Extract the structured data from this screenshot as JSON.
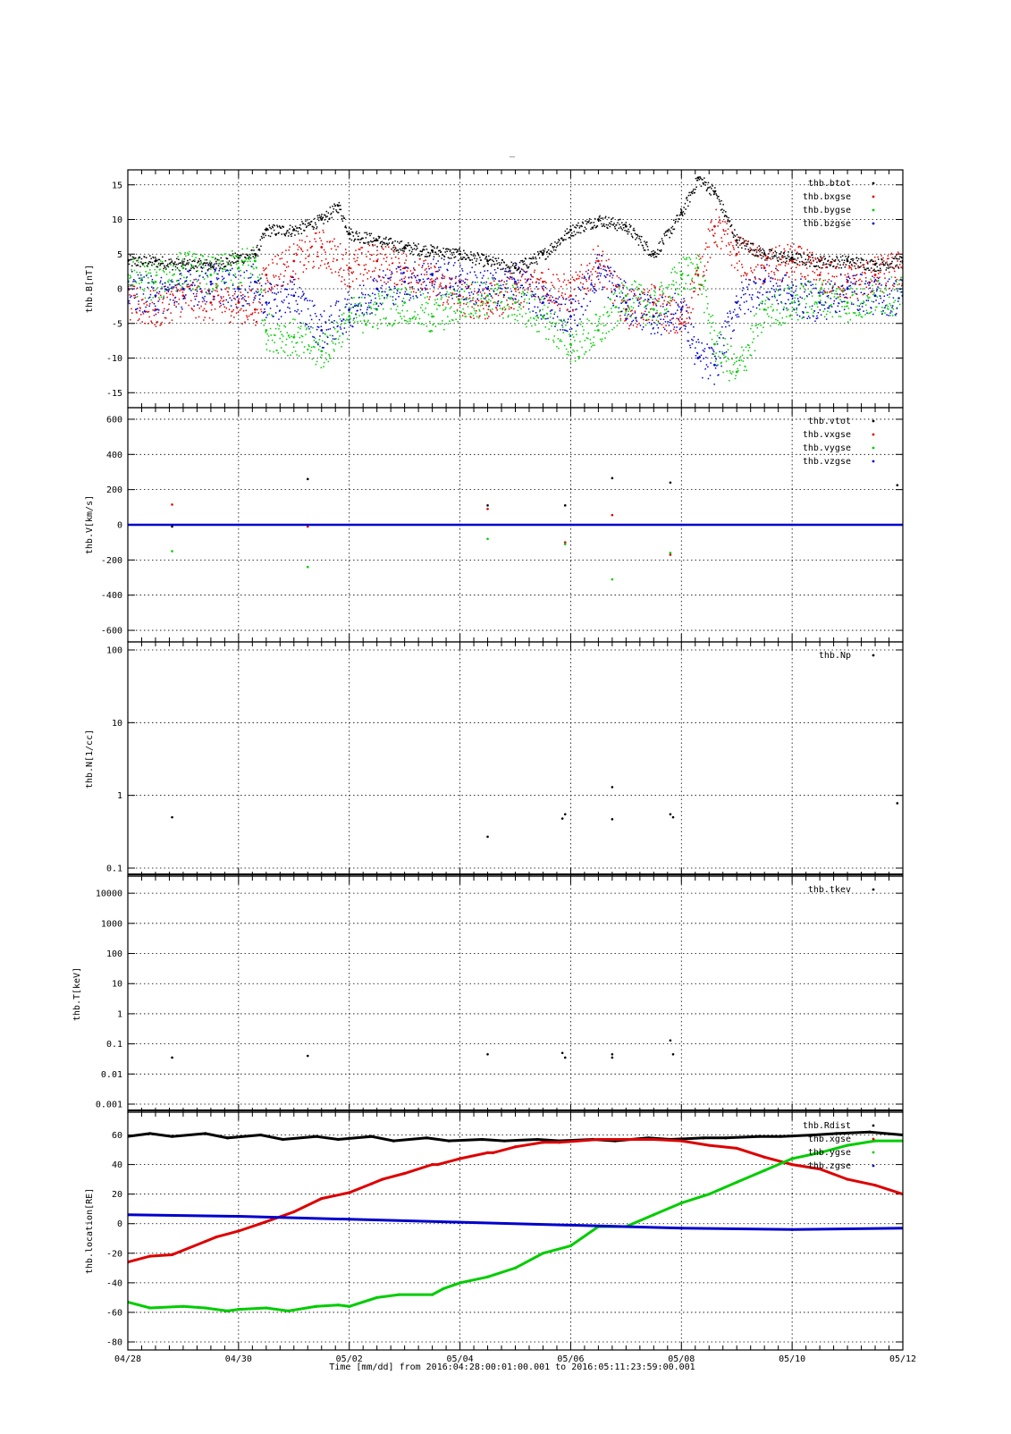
{
  "chart_data": {
    "title": "_",
    "time_range_text": "Time [mm/dd]  from 2016:04:28:00:01:00.001  to  2016:05:11:23:59:00.001",
    "x_axis": {
      "label": "Time [mm/dd]",
      "start": "2016-04-28",
      "end": "2016-05-12",
      "ticks": [
        "04/28",
        "04/30",
        "05/02",
        "05/04",
        "05/06",
        "05/08",
        "05/10",
        "05/12"
      ],
      "tick_days": [
        0,
        2,
        4,
        6,
        8,
        10,
        12,
        14
      ]
    },
    "colors": {
      "black": "#000000",
      "red": "#dd0000",
      "green": "#00cc00",
      "blue": "#0000cc"
    },
    "panels": [
      {
        "type": "scatter",
        "ylabel": "thb.B[nT]",
        "scale": "linear",
        "ylim": [
          -16,
          16
        ],
        "yticks": [
          -15,
          -10,
          -5,
          0,
          5,
          10,
          15
        ],
        "ytick_labels": [
          "-15",
          "-10",
          "-5",
          "0",
          "5",
          "10",
          "15"
        ],
        "series": [
          {
            "name": "thb.btot",
            "color": "#000000",
            "x": [
              0,
              0.5,
              1,
              1.5,
              2,
              2.3,
              2.5,
              3,
              3.5,
              3.8,
              4,
              4.5,
              5,
              5.5,
              6,
              6.5,
              7,
              7.5,
              8,
              8.5,
              9,
              9.5,
              10,
              10.3,
              10.6,
              11,
              11.5,
              12,
              12.5,
              13,
              13.5,
              14
            ],
            "y": [
              4,
              4,
              3.5,
              3.5,
              4.5,
              5,
              8.5,
              8.5,
              10,
              12,
              8,
              7,
              6,
              5.5,
              5,
              4,
              3,
              5,
              8.5,
              10,
              9,
              5,
              11,
              16,
              14,
              7,
              5,
              4.5,
              4,
              4,
              3.5,
              4
            ]
          },
          {
            "name": "thb.bxgse",
            "color": "#dd0000",
            "x": [
              0,
              0.5,
              1,
              1.5,
              2,
              2.3,
              2.5,
              3,
              3.5,
              4,
              4.5,
              5,
              5.5,
              6,
              6.5,
              7,
              7.5,
              8,
              8.5,
              9,
              9.5,
              10,
              10.3,
              10.6,
              11,
              11.5,
              12,
              12.5,
              13,
              13.5,
              14
            ],
            "y": [
              -2,
              -3,
              -1,
              -2,
              -2,
              -3,
              2,
              4,
              6,
              3,
              4,
              3,
              1,
              -1,
              -2,
              0,
              1,
              -1,
              4,
              -3,
              -2,
              -5,
              2,
              9,
              5,
              3,
              4,
              2,
              1,
              2,
              3
            ]
          },
          {
            "name": "thb.bygse",
            "color": "#00cc00",
            "x": [
              0,
              0.5,
              1,
              1.5,
              2,
              2.3,
              2.5,
              3,
              3.5,
              4,
              4.5,
              5,
              5.5,
              6,
              6.5,
              7,
              7.5,
              8,
              8.5,
              9,
              9.5,
              10,
              10.3,
              10.6,
              11,
              11.5,
              12,
              12.5,
              13,
              13.5,
              14
            ],
            "y": [
              2,
              1,
              3,
              2,
              3,
              4,
              -6,
              -7,
              -9,
              -4,
              -3,
              -2,
              -4,
              -2,
              -1,
              -2,
              -4,
              -8,
              -6,
              -1,
              -3,
              2,
              3,
              -8,
              -12,
              -3,
              -2,
              -1,
              -2,
              -1,
              -1
            ]
          },
          {
            "name": "thb.bzgse",
            "color": "#0000cc",
            "x": [
              0,
              0.5,
              1,
              1.5,
              2,
              2.3,
              2.5,
              3,
              3.5,
              4,
              4.5,
              5,
              5.5,
              6,
              6.5,
              7,
              7.5,
              8,
              8.5,
              9,
              9.5,
              10,
              10.3,
              10.6,
              11,
              11.5,
              12,
              12.5,
              13,
              13.5,
              14
            ],
            "y": [
              0,
              -1,
              0,
              1,
              0,
              1,
              -2,
              -1,
              -6,
              -3,
              0,
              1,
              2,
              1,
              0,
              1,
              -2,
              -4,
              3,
              -2,
              -4,
              -3,
              -10,
              -11,
              -2,
              1,
              -1,
              -2,
              0,
              -1,
              -1
            ]
          }
        ],
        "legend": [
          "thb.btot",
          "thb.bxgse",
          "thb.bygse",
          "thb.bzgse"
        ],
        "legend_position": "top-right"
      },
      {
        "type": "scatter",
        "ylabel": "thb.V[km/s]",
        "scale": "linear",
        "ylim": [
          -620,
          620
        ],
        "yticks": [
          -600,
          -400,
          -200,
          0,
          200,
          400,
          600
        ],
        "ytick_labels": [
          "-600",
          "-400",
          "-200",
          "0",
          "200",
          "400",
          "600"
        ],
        "series": [
          {
            "name": "thb.vtot",
            "color": "#000000",
            "x": [
              0.8,
              3.25,
              6.5,
              7.9,
              8.75,
              9.8,
              13.9
            ],
            "y": [
              -10,
              260,
              110,
              110,
              265,
              240,
              225
            ]
          },
          {
            "name": "thb.vxgse",
            "color": "#dd0000",
            "x": [
              0.8,
              3.25,
              6.5,
              7.9,
              8.75,
              9.8
            ],
            "y": [
              115,
              -10,
              90,
              -100,
              55,
              -170
            ]
          },
          {
            "name": "thb.vygse",
            "color": "#00cc00",
            "x": [
              0.8,
              3.25,
              6.5,
              7.9,
              8.75,
              9.8
            ],
            "y": [
              -150,
              -240,
              -80,
              -110,
              -310,
              -160
            ]
          },
          {
            "name": "thb.vzgse",
            "color": "#0000cc",
            "x": [
              0,
              2,
              4,
              6,
              8,
              10,
              12,
              14
            ],
            "y": [
              0,
              0,
              0,
              0,
              0,
              0,
              0,
              0
            ]
          }
        ],
        "legend": [
          "thb.vtot",
          "thb.vxgse",
          "thb.vygse",
          "thb.vzgse"
        ],
        "legend_position": "top-right"
      },
      {
        "type": "scatter",
        "ylabel": "thb.N[1/cc]",
        "scale": "log",
        "ylim": [
          0.1,
          100
        ],
        "yticks": [
          0.1,
          1,
          10,
          100
        ],
        "ytick_labels": [
          "0.1",
          "1",
          "10",
          "100"
        ],
        "series": [
          {
            "name": "thb.Np",
            "color": "#000000",
            "x": [
              0.8,
              6.5,
              7.85,
              7.9,
              8.75,
              8.75,
              9.8,
              9.85,
              13.9
            ],
            "y": [
              0.5,
              0.27,
              0.48,
              0.55,
              1.3,
              0.47,
              0.55,
              0.5,
              0.78
            ]
          }
        ],
        "legend": [
          "thb.Np"
        ],
        "legend_position": "top-right"
      },
      {
        "type": "scatter",
        "ylabel": "thb.T[keV]",
        "scale": "log",
        "ylim": [
          0.001,
          20000
        ],
        "yticks": [
          0.001,
          0.01,
          0.1,
          1,
          10,
          100,
          1000,
          10000
        ],
        "ytick_labels": [
          "0.001",
          "0.01",
          "0.1",
          "1",
          "10",
          "100",
          "1000",
          "10000"
        ],
        "series": [
          {
            "name": "thb.tkev",
            "color": "#000000",
            "x": [
              0.8,
              3.25,
              6.5,
              7.85,
              7.9,
              8.75,
              8.75,
              9.8,
              9.85
            ],
            "y": [
              0.035,
              0.04,
              0.045,
              0.05,
              0.035,
              0.045,
              0.035,
              0.13,
              0.045
            ]
          }
        ],
        "legend": [
          "thb.tkev"
        ],
        "legend_position": "top-right"
      },
      {
        "type": "line",
        "ylabel": "thb.location[RE]",
        "scale": "linear",
        "ylim": [
          -80,
          70
        ],
        "yticks": [
          -80,
          -60,
          -40,
          -20,
          0,
          20,
          40,
          60
        ],
        "ytick_labels": [
          "-80",
          "-60",
          "-40",
          "-20",
          "0",
          "20",
          "40",
          "60"
        ],
        "series": [
          {
            "name": "thb.Rdist",
            "color": "#000000",
            "x": [
              0,
              0.4,
              0.8,
              1.4,
              1.8,
              2.4,
              2.8,
              3.4,
              3.8,
              4.4,
              4.8,
              5.4,
              5.8,
              6.4,
              6.8,
              7.4,
              7.8,
              8.4,
              8.8,
              9.4,
              9.8,
              10.4,
              10.8,
              11.4,
              11.8,
              12.4,
              12.8,
              13.4,
              14
            ],
            "y": [
              59,
              61,
              59,
              61,
              58,
              60,
              57,
              59,
              57,
              59,
              56,
              58,
              56,
              57,
              56,
              57,
              56,
              57,
              56,
              58,
              57,
              58,
              58,
              59,
              59,
              60,
              61,
              62,
              60
            ]
          },
          {
            "name": "thb.xgse",
            "color": "#dd0000",
            "x": [
              0,
              0.4,
              0.8,
              1.4,
              1.6,
              2,
              2.4,
              3,
              3.5,
              4,
              4.4,
              4.6,
              5,
              5.5,
              5.6,
              6,
              6.5,
              6.6,
              7,
              7.5,
              7.8,
              8.5,
              9,
              9.5,
              10,
              10.5,
              11,
              11.5,
              12,
              12.5,
              13,
              13.5,
              14
            ],
            "y": [
              -26,
              -22,
              -21,
              -12,
              -9,
              -5,
              0,
              8,
              17,
              21,
              27,
              30,
              34,
              40,
              40,
              44,
              48,
              48,
              52,
              55,
              55,
              57,
              57,
              57,
              56,
              53,
              51,
              45,
              40,
              37,
              30,
              26,
              20
            ]
          },
          {
            "name": "thb.ygse",
            "color": "#00cc00",
            "x": [
              0,
              0.4,
              1,
              1.4,
              1.8,
              2,
              2.5,
              2.9,
              3.4,
              3.8,
              4,
              4.5,
              4.9,
              5.5,
              5.7,
              6,
              6.5,
              7,
              7.5,
              8,
              8.5,
              9,
              9.5,
              10,
              10.5,
              11,
              11.5,
              12,
              12.5,
              13,
              13.5,
              14
            ],
            "y": [
              -53,
              -57,
              -56,
              -57,
              -59,
              -58,
              -57,
              -59,
              -56,
              -55,
              -56,
              -50,
              -48,
              -48,
              -44,
              -40,
              -36,
              -30,
              -20,
              -15,
              -2,
              -2,
              6,
              14,
              20,
              28,
              36,
              44,
              48,
              53,
              56,
              56
            ]
          },
          {
            "name": "thb.zgse",
            "color": "#0000cc",
            "x": [
              0,
              2,
              4,
              6,
              8,
              10,
              12,
              14
            ],
            "y": [
              6,
              5,
              3,
              1,
              -1,
              -3,
              -4,
              -3
            ]
          }
        ],
        "legend": [
          "thb.Rdist",
          "thb.xgse",
          "thb.ygse",
          "thb.zgse"
        ],
        "legend_position": "top-right"
      }
    ]
  }
}
